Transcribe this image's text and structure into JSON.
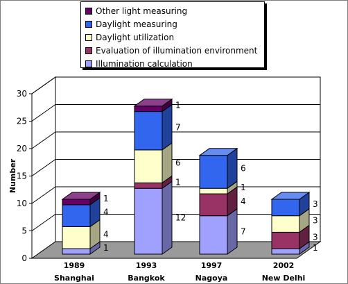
{
  "chart_data": {
    "type": "bar",
    "stacked": true,
    "three_d": true,
    "title": "",
    "xlabel": "",
    "ylabel": "Number",
    "ylim": [
      0,
      30
    ],
    "yticks": [
      "0",
      "5",
      "10",
      "15",
      "20",
      "25",
      "30"
    ],
    "grid": true,
    "legend_position": "top",
    "categories": [
      {
        "year": "1989",
        "city": "Shanghai"
      },
      {
        "year": "1993",
        "city": "Bangkok"
      },
      {
        "year": "1997",
        "city": "Nagoya"
      },
      {
        "year": "2002",
        "city": "New Delhi"
      }
    ],
    "series": [
      {
        "name": "Illumination calculation",
        "color": "#a0a0ff",
        "values": [
          1,
          12,
          7,
          1
        ]
      },
      {
        "name": "Evaluation of illumination environment",
        "color": "#993366",
        "values": [
          0,
          1,
          4,
          3
        ]
      },
      {
        "name": "Daylight utilization",
        "color": "#ffffcc",
        "values": [
          4,
          6,
          1,
          3
        ]
      },
      {
        "name": "Daylight measuring",
        "color": "#3366ee",
        "values": [
          4,
          7,
          6,
          3
        ]
      },
      {
        "name": "Other light measuring",
        "color": "#660066",
        "values": [
          1,
          1,
          0,
          0
        ]
      }
    ],
    "data_labels": [
      [
        "1",
        "",
        "4",
        "4",
        "1"
      ],
      [
        "12",
        "1",
        "6",
        "7",
        "1"
      ],
      [
        "7",
        "4",
        "1",
        "6",
        ""
      ],
      [
        "1",
        "3",
        "3",
        "3",
        ""
      ]
    ]
  }
}
